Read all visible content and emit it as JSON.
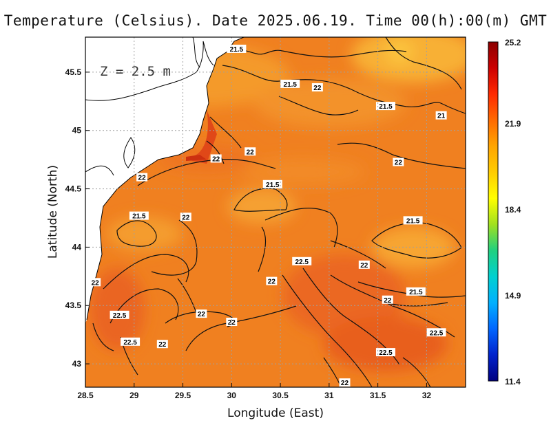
{
  "title": "Temperature (Celsius). Date 2025.06.19. Time 00(h):00(m) GMT",
  "depth_label": "Z = 2.5 m",
  "xlabel": "Longitude (East)",
  "ylabel": "Latitude (North)",
  "x_ticks": [
    {
      "value": 28.5,
      "label": "28.5"
    },
    {
      "value": 29,
      "label": "29"
    },
    {
      "value": 29.5,
      "label": "29.5"
    },
    {
      "value": 30,
      "label": "30"
    },
    {
      "value": 30.5,
      "label": "30.5"
    },
    {
      "value": 31,
      "label": "31"
    },
    {
      "value": 31.5,
      "label": "31.5"
    },
    {
      "value": 32,
      "label": "32"
    }
  ],
  "y_ticks": [
    {
      "value": 43,
      "label": "43"
    },
    {
      "value": 43.5,
      "label": "43.5"
    },
    {
      "value": 44,
      "label": "44"
    },
    {
      "value": 44.5,
      "label": "44.5"
    },
    {
      "value": 45,
      "label": "45"
    },
    {
      "value": 45.5,
      "label": "45.5"
    }
  ],
  "x_range": [
    28.5,
    32.4
  ],
  "y_range": [
    42.8,
    45.8
  ],
  "colorbar": {
    "labels": [
      "25.2",
      "21.9",
      "18.4",
      "14.9",
      "11.4"
    ],
    "min": 11.4,
    "max": 25.2,
    "colors": [
      "#8b0000",
      "#cc0000",
      "#ff2a00",
      "#ff6a00",
      "#ffa500",
      "#ffcc00",
      "#ffff00",
      "#a0e020",
      "#20d080",
      "#00d0d0",
      "#00b0ff",
      "#0066ff",
      "#0022cc",
      "#000080"
    ]
  },
  "contour_labels": [
    {
      "text": "21.5",
      "lon": 30.05,
      "lat": 45.7
    },
    {
      "text": "21.5",
      "lon": 30.6,
      "lat": 45.4
    },
    {
      "text": "22",
      "lon": 30.88,
      "lat": 45.37
    },
    {
      "text": "21.5",
      "lon": 31.58,
      "lat": 45.21
    },
    {
      "text": "21",
      "lon": 32.15,
      "lat": 45.13
    },
    {
      "text": "22",
      "lon": 30.19,
      "lat": 44.82
    },
    {
      "text": "22",
      "lon": 29.84,
      "lat": 44.76
    },
    {
      "text": "22",
      "lon": 31.71,
      "lat": 44.73
    },
    {
      "text": "22",
      "lon": 29.08,
      "lat": 44.6
    },
    {
      "text": "21.5",
      "lon": 30.42,
      "lat": 44.54
    },
    {
      "text": "21.5",
      "lon": 29.05,
      "lat": 44.27
    },
    {
      "text": "22",
      "lon": 29.53,
      "lat": 44.26
    },
    {
      "text": "21.5",
      "lon": 31.86,
      "lat": 44.23
    },
    {
      "text": "22.5",
      "lon": 30.72,
      "lat": 43.88
    },
    {
      "text": "22",
      "lon": 31.36,
      "lat": 43.85
    },
    {
      "text": "22",
      "lon": 28.6,
      "lat": 43.7
    },
    {
      "text": "22",
      "lon": 30.41,
      "lat": 43.71
    },
    {
      "text": "21.5",
      "lon": 31.89,
      "lat": 43.62
    },
    {
      "text": "22",
      "lon": 31.6,
      "lat": 43.55
    },
    {
      "text": "22.5",
      "lon": 28.85,
      "lat": 43.42
    },
    {
      "text": "22",
      "lon": 29.69,
      "lat": 43.43
    },
    {
      "text": "22",
      "lon": 30.0,
      "lat": 43.36
    },
    {
      "text": "22.5",
      "lon": 32.1,
      "lat": 43.27
    },
    {
      "text": "22.5",
      "lon": 28.96,
      "lat": 43.19
    },
    {
      "text": "22",
      "lon": 29.29,
      "lat": 43.17
    },
    {
      "text": "22.5",
      "lon": 31.58,
      "lat": 43.1
    },
    {
      "text": "22",
      "lon": 31.16,
      "lat": 42.84
    }
  ]
}
